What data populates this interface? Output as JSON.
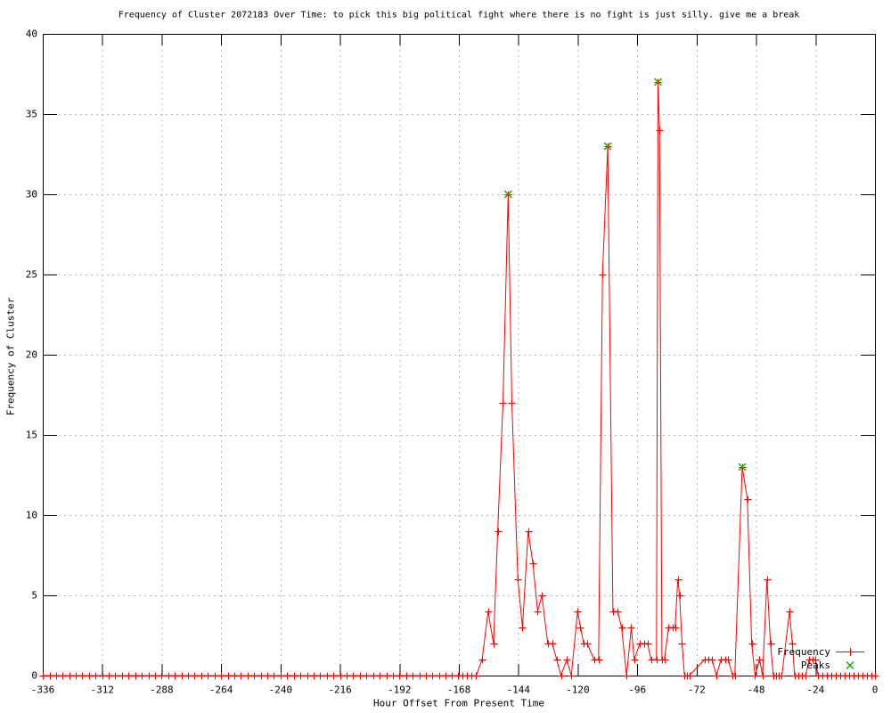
{
  "chart_data": {
    "type": "line",
    "title": "Frequency of Cluster 2072183 Over Time: to pick this big political fight where there is no fight is just silly. give me a break",
    "xlabel": "Hour Offset From Present Time",
    "ylabel": "Frequency of Cluster",
    "xlim": [
      -336,
      0
    ],
    "ylim": [
      0,
      40
    ],
    "xticks": [
      -336,
      -312,
      -288,
      -264,
      -240,
      -216,
      -192,
      -168,
      -144,
      -120,
      -96,
      -72,
      -48,
      -24,
      0
    ],
    "yticks": [
      0,
      5,
      10,
      15,
      20,
      25,
      30,
      35,
      40
    ],
    "grid": true,
    "legend_position": "bottom-right-inside",
    "colors": {
      "frequency": "#ff0000",
      "peaks": "#00b000",
      "grid": "#b8b8b8",
      "border": "#000000"
    },
    "series": [
      {
        "name": "Frequency",
        "color": "#ff0000",
        "marker": "plus",
        "line": true,
        "points": [
          [
            -336.0,
            0
          ],
          [
            -333.3,
            0
          ],
          [
            -330.7,
            0
          ],
          [
            -328.0,
            0
          ],
          [
            -325.3,
            0
          ],
          [
            -322.7,
            0
          ],
          [
            -320.0,
            0
          ],
          [
            -317.3,
            0
          ],
          [
            -314.7,
            0
          ],
          [
            -312.0,
            0
          ],
          [
            -309.3,
            0
          ],
          [
            -306.7,
            0
          ],
          [
            -304.0,
            0
          ],
          [
            -301.3,
            0
          ],
          [
            -298.7,
            0
          ],
          [
            -296.0,
            0
          ],
          [
            -293.3,
            0
          ],
          [
            -290.7,
            0
          ],
          [
            -288.0,
            0
          ],
          [
            -285.3,
            0
          ],
          [
            -282.7,
            0
          ],
          [
            -280.0,
            0
          ],
          [
            -277.3,
            0
          ],
          [
            -274.7,
            0
          ],
          [
            -272.0,
            0
          ],
          [
            -269.3,
            0
          ],
          [
            -266.7,
            0
          ],
          [
            -264.0,
            0
          ],
          [
            -261.3,
            0
          ],
          [
            -258.7,
            0
          ],
          [
            -256.0,
            0
          ],
          [
            -253.3,
            0
          ],
          [
            -250.7,
            0
          ],
          [
            -248.0,
            0
          ],
          [
            -245.3,
            0
          ],
          [
            -242.7,
            0
          ],
          [
            -240.0,
            0
          ],
          [
            -237.3,
            0
          ],
          [
            -234.7,
            0
          ],
          [
            -232.0,
            0
          ],
          [
            -229.3,
            0
          ],
          [
            -226.7,
            0
          ],
          [
            -224.0,
            0
          ],
          [
            -221.3,
            0
          ],
          [
            -218.7,
            0
          ],
          [
            -216.0,
            0
          ],
          [
            -213.3,
            0
          ],
          [
            -210.7,
            0
          ],
          [
            -208.0,
            0
          ],
          [
            -205.3,
            0
          ],
          [
            -202.7,
            0
          ],
          [
            -200.0,
            0
          ],
          [
            -197.3,
            0
          ],
          [
            -194.7,
            0
          ],
          [
            -192.0,
            0
          ],
          [
            -189.3,
            0
          ],
          [
            -186.7,
            0
          ],
          [
            -184.0,
            0
          ],
          [
            -181.3,
            0
          ],
          [
            -178.7,
            0
          ],
          [
            -176.0,
            0
          ],
          [
            -173.3,
            0
          ],
          [
            -170.7,
            0
          ],
          [
            -168.2,
            0
          ],
          [
            -166.4,
            0
          ],
          [
            -164.6,
            0
          ],
          [
            -162.8,
            0
          ],
          [
            -161.0,
            0
          ],
          [
            -158.6,
            1
          ],
          [
            -156.2,
            4
          ],
          [
            -154.0,
            2
          ],
          [
            -152.3,
            9
          ],
          [
            -150.2,
            17
          ],
          [
            -148.1,
            30
          ],
          [
            -146.6,
            17
          ],
          [
            -144.2,
            6
          ],
          [
            -142.3,
            3
          ],
          [
            -140.0,
            9
          ],
          [
            -138.1,
            7
          ],
          [
            -136.2,
            4
          ],
          [
            -134.5,
            5
          ],
          [
            -132.1,
            2
          ],
          [
            -130.3,
            2
          ],
          [
            -128.5,
            1
          ],
          [
            -126.8,
            0
          ],
          [
            -124.4,
            1
          ],
          [
            -122.6,
            0
          ],
          [
            -120.1,
            4
          ],
          [
            -118.9,
            3
          ],
          [
            -117.6,
            2
          ],
          [
            -116.2,
            2
          ],
          [
            -113.4,
            1
          ],
          [
            -111.6,
            1
          ],
          [
            -110.0,
            25
          ],
          [
            -107.9,
            33
          ],
          [
            -105.8,
            4
          ],
          [
            -103.9,
            4
          ],
          [
            -102.3,
            3
          ],
          [
            -100.3,
            0
          ],
          [
            -98.4,
            3
          ],
          [
            -97.2,
            1
          ],
          [
            -94.9,
            2
          ],
          [
            -93.3,
            2
          ],
          [
            -91.8,
            2
          ],
          [
            -90.4,
            1
          ],
          [
            -88.2,
            1
          ],
          [
            -87.6,
            37
          ],
          [
            -87.0,
            34
          ],
          [
            -86.0,
            1
          ],
          [
            -85.0,
            1
          ],
          [
            -83.3,
            3
          ],
          [
            -81.5,
            3
          ],
          [
            -80.7,
            3
          ],
          [
            -79.6,
            6
          ],
          [
            -78.9,
            5
          ],
          [
            -77.9,
            2
          ],
          [
            -76.9,
            0
          ],
          [
            -76.0,
            0
          ],
          [
            -75.0,
            0
          ],
          [
            -68.8,
            1
          ],
          [
            -67.4,
            1
          ],
          [
            -65.8,
            1
          ],
          [
            -64.0,
            0
          ],
          [
            -62.2,
            1
          ],
          [
            -60.6,
            1
          ],
          [
            -59.2,
            1
          ],
          [
            -57.5,
            0
          ],
          [
            -56.6,
            0
          ],
          [
            -53.6,
            13
          ],
          [
            -51.5,
            11
          ],
          [
            -49.8,
            2
          ],
          [
            -48.4,
            0
          ],
          [
            -46.6,
            1
          ],
          [
            -45.4,
            0
          ],
          [
            -43.6,
            6
          ],
          [
            -42.2,
            2
          ],
          [
            -41.0,
            0
          ],
          [
            -39.9,
            0
          ],
          [
            -38.8,
            0
          ],
          [
            -37.6,
            0
          ],
          [
            -34.5,
            4
          ],
          [
            -33.4,
            2
          ],
          [
            -32.4,
            0
          ],
          [
            -31.0,
            0
          ],
          [
            -29.5,
            0
          ],
          [
            -28.0,
            0
          ],
          [
            -26.6,
            1
          ],
          [
            -25.3,
            1
          ],
          [
            -24.0,
            1
          ],
          [
            -23.0,
            0
          ],
          [
            -21.3,
            0
          ],
          [
            -19.5,
            0
          ],
          [
            -17.7,
            0
          ],
          [
            -15.9,
            0
          ],
          [
            -14.1,
            0
          ],
          [
            -12.3,
            0
          ],
          [
            -10.5,
            0
          ],
          [
            -8.7,
            0
          ],
          [
            -6.9,
            0
          ],
          [
            -5.1,
            0
          ],
          [
            -3.3,
            0
          ],
          [
            -1.5,
            0
          ],
          [
            0.0,
            0
          ]
        ]
      },
      {
        "name": "Peaks",
        "color": "#00b000",
        "marker": "cross",
        "line": false,
        "points": [
          [
            -148.1,
            30
          ],
          [
            -107.9,
            33
          ],
          [
            -87.6,
            37
          ],
          [
            -53.6,
            13
          ]
        ]
      }
    ]
  },
  "legend": {
    "frequency_label": "Frequency",
    "peaks_label": "Peaks"
  }
}
